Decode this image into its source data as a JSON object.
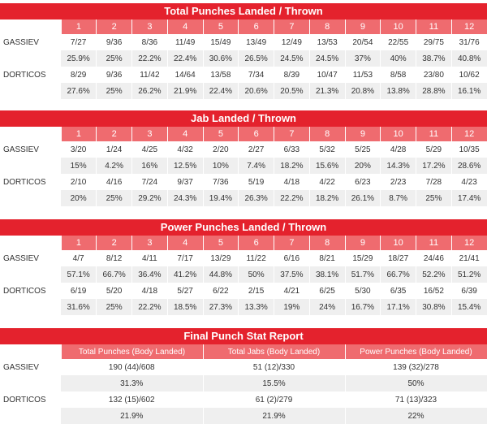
{
  "sections": [
    {
      "title": "Total Punches Landed / Thrown",
      "headers": [
        "1",
        "2",
        "3",
        "4",
        "5",
        "6",
        "7",
        "8",
        "9",
        "10",
        "11",
        "12"
      ],
      "fighters": [
        {
          "name": "GASSIEV",
          "row1": [
            "7/27",
            "9/36",
            "8/36",
            "11/49",
            "15/49",
            "13/49",
            "12/49",
            "13/53",
            "20/54",
            "22/55",
            "29/75",
            "31/76"
          ],
          "row2": [
            "25.9%",
            "25%",
            "22.2%",
            "22.4%",
            "30.6%",
            "26.5%",
            "24.5%",
            "24.5%",
            "37%",
            "40%",
            "38.7%",
            "40.8%"
          ]
        },
        {
          "name": "DORTICOS",
          "row1": [
            "8/29",
            "9/36",
            "11/42",
            "14/64",
            "13/58",
            "7/34",
            "8/39",
            "10/47",
            "11/53",
            "8/58",
            "23/80",
            "10/62"
          ],
          "row2": [
            "27.6%",
            "25%",
            "26.2%",
            "21.9%",
            "22.4%",
            "20.6%",
            "20.5%",
            "21.3%",
            "20.8%",
            "13.8%",
            "28.8%",
            "16.1%"
          ]
        }
      ]
    },
    {
      "title": "Jab Landed / Thrown",
      "headers": [
        "1",
        "2",
        "3",
        "4",
        "5",
        "6",
        "7",
        "8",
        "9",
        "10",
        "11",
        "12"
      ],
      "fighters": [
        {
          "name": "GASSIEV",
          "row1": [
            "3/20",
            "1/24",
            "4/25",
            "4/32",
            "2/20",
            "2/27",
            "6/33",
            "5/32",
            "5/25",
            "4/28",
            "5/29",
            "10/35"
          ],
          "row2": [
            "15%",
            "4.2%",
            "16%",
            "12.5%",
            "10%",
            "7.4%",
            "18.2%",
            "15.6%",
            "20%",
            "14.3%",
            "17.2%",
            "28.6%"
          ]
        },
        {
          "name": "DORTICOS",
          "row1": [
            "2/10",
            "4/16",
            "7/24",
            "9/37",
            "7/36",
            "5/19",
            "4/18",
            "4/22",
            "6/23",
            "2/23",
            "7/28",
            "4/23"
          ],
          "row2": [
            "20%",
            "25%",
            "29.2%",
            "24.3%",
            "19.4%",
            "26.3%",
            "22.2%",
            "18.2%",
            "26.1%",
            "8.7%",
            "25%",
            "17.4%"
          ]
        }
      ]
    },
    {
      "title": "Power Punches Landed / Thrown",
      "headers": [
        "1",
        "2",
        "3",
        "4",
        "5",
        "6",
        "7",
        "8",
        "9",
        "10",
        "11",
        "12"
      ],
      "fighters": [
        {
          "name": "GASSIEV",
          "row1": [
            "4/7",
            "8/12",
            "4/11",
            "7/17",
            "13/29",
            "11/22",
            "6/16",
            "8/21",
            "15/29",
            "18/27",
            "24/46",
            "21/41"
          ],
          "row2": [
            "57.1%",
            "66.7%",
            "36.4%",
            "41.2%",
            "44.8%",
            "50%",
            "37.5%",
            "38.1%",
            "51.7%",
            "66.7%",
            "52.2%",
            "51.2%"
          ]
        },
        {
          "name": "DORTICOS",
          "row1": [
            "6/19",
            "5/20",
            "4/18",
            "5/27",
            "6/22",
            "2/15",
            "4/21",
            "6/25",
            "5/30",
            "6/35",
            "16/52",
            "6/39"
          ],
          "row2": [
            "31.6%",
            "25%",
            "22.2%",
            "18.5%",
            "27.3%",
            "13.3%",
            "19%",
            "24%",
            "16.7%",
            "17.1%",
            "30.8%",
            "15.4%"
          ]
        }
      ]
    }
  ],
  "final": {
    "title": "Final Punch Stat Report",
    "headers": [
      "Total Punches (Body Landed)",
      "Total Jabs (Body Landed)",
      "Power Punches (Body Landed)"
    ],
    "fighters": [
      {
        "name": "GASSIEV",
        "row1": [
          "190 (44)/608",
          "51 (12)/330",
          "139 (32)/278"
        ],
        "row2": [
          "31.3%",
          "15.5%",
          "50%"
        ]
      },
      {
        "name": "DORTICOS",
        "row1": [
          "132 (15)/602",
          "61 (2)/279",
          "71 (13)/323"
        ],
        "row2": [
          "21.9%",
          "21.9%",
          "22%"
        ]
      }
    ]
  },
  "colors": {
    "title_bg": "#e4222d",
    "header_bg": "#ef6b6f",
    "shade": "#efefef"
  }
}
